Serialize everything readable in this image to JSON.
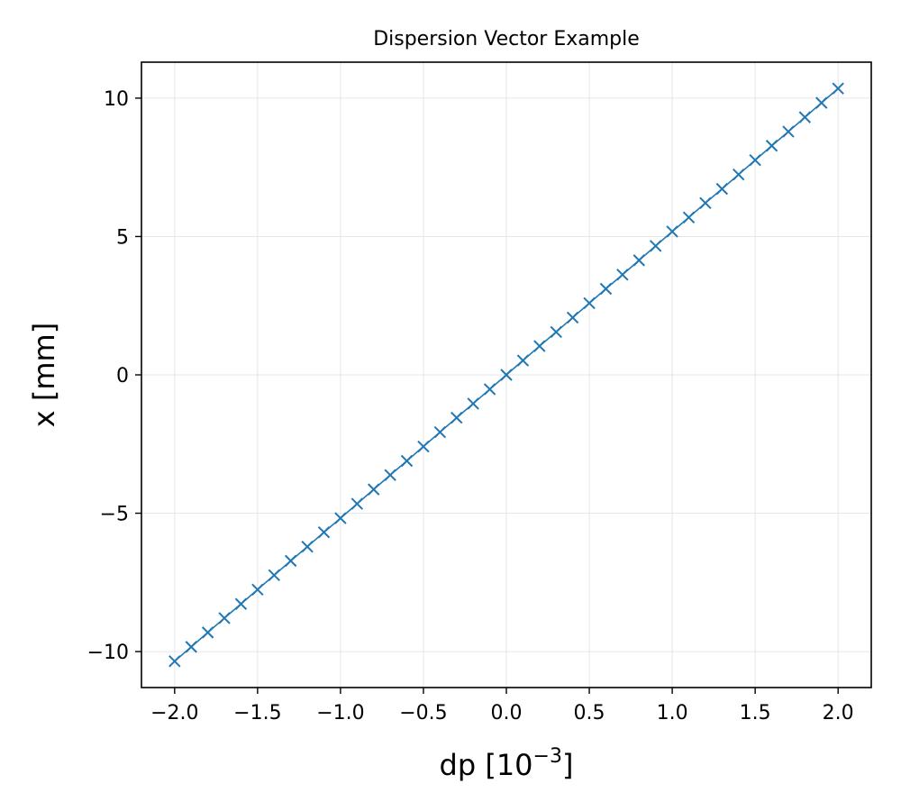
{
  "chart_data": {
    "type": "line",
    "title": "Dispersion Vector Example",
    "xlabel": "dp [10",
    "xlabel_exponent": "−3",
    "xlabel_suffix": "]",
    "ylabel": "x [mm]",
    "xlim": [
      -2.2,
      2.2
    ],
    "ylim": [
      -11.3,
      11.3
    ],
    "xticks": [
      -2.0,
      -1.5,
      -1.0,
      -0.5,
      0.0,
      0.5,
      1.0,
      1.5,
      2.0
    ],
    "xtick_labels": [
      "−2.0",
      "−1.5",
      "−1.0",
      "−0.5",
      "0.0",
      "0.5",
      "1.0",
      "1.5",
      "2.0"
    ],
    "yticks": [
      -10,
      -5,
      0,
      5,
      10
    ],
    "ytick_labels": [
      "−10",
      "−5",
      "0",
      "5",
      "10"
    ],
    "grid": true,
    "series": [
      {
        "color": "#1f77b4",
        "marker": "x",
        "x": [
          -2.0,
          -1.9,
          -1.8,
          -1.7,
          -1.6,
          -1.5,
          -1.4,
          -1.3,
          -1.2,
          -1.1,
          -1.0,
          -0.9,
          -0.8,
          -0.7,
          -0.6,
          -0.5,
          -0.4,
          -0.3,
          -0.2,
          -0.1,
          0.0,
          0.1,
          0.2,
          0.3,
          0.4,
          0.5,
          0.6,
          0.7,
          0.8,
          0.9,
          1.0,
          1.1,
          1.2,
          1.3,
          1.4,
          1.5,
          1.6,
          1.7,
          1.8,
          1.9,
          2.0
        ],
        "y": [
          -10.35,
          -9.83,
          -9.31,
          -8.79,
          -8.28,
          -7.76,
          -7.24,
          -6.72,
          -6.21,
          -5.69,
          -5.18,
          -4.66,
          -4.14,
          -3.62,
          -3.11,
          -2.59,
          -2.07,
          -1.55,
          -1.04,
          -0.52,
          0.0,
          0.52,
          1.04,
          1.55,
          2.07,
          2.59,
          3.11,
          3.62,
          4.14,
          4.66,
          5.18,
          5.69,
          6.21,
          6.72,
          7.24,
          7.76,
          8.28,
          8.79,
          9.31,
          9.83,
          10.35
        ]
      }
    ]
  }
}
